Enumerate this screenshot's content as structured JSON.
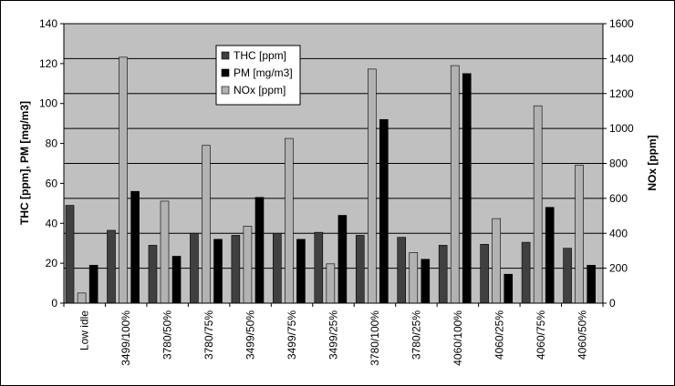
{
  "chart_data": {
    "type": "bar",
    "categories": [
      "Low idle",
      "3499/100%",
      "3780/50%",
      "3780/75%",
      "3499/50%",
      "3499/75%",
      "3499/25%",
      "3780/100%",
      "3780/25%",
      "4060/100%",
      "4060/25%",
      "4060/75%",
      "4060/50%"
    ],
    "series": [
      {
        "name": "THC [ppm]",
        "axis": "left",
        "color": "#404040",
        "values": [
          49,
          36.5,
          29,
          35,
          34,
          35,
          35.5,
          34,
          33,
          29,
          29.5,
          30.5,
          27.5
        ]
      },
      {
        "name": "NOx [ppm]",
        "axis": "right",
        "color": "#b2b2b2",
        "values": [
          58,
          1408,
          584,
          903,
          441,
          943,
          225,
          1340,
          290,
          1360,
          484,
          1130,
          790
        ]
      },
      {
        "name": "PM [mg/m3]",
        "axis": "left",
        "color": "#000000",
        "values": [
          19,
          56,
          23.5,
          32,
          53,
          32,
          44,
          92,
          22,
          115,
          14.5,
          48,
          19
        ]
      }
    ],
    "ylabel": "THC [ppm], PM [mg/m3]",
    "y2label": "NOx [ppm]",
    "ylim": [
      0,
      140
    ],
    "y2lim": [
      0,
      1600
    ],
    "yticks": [
      0,
      20,
      40,
      60,
      80,
      100,
      120,
      140
    ],
    "y2ticks": [
      0,
      200,
      400,
      600,
      800,
      1000,
      1200,
      1400,
      1600
    ],
    "legend": [
      "THC [ppm]",
      "PM [mg/m3]",
      "NOx [ppm]"
    ],
    "legend_position": "top-center",
    "grid": true,
    "plot_background": "#c0c0c0"
  }
}
